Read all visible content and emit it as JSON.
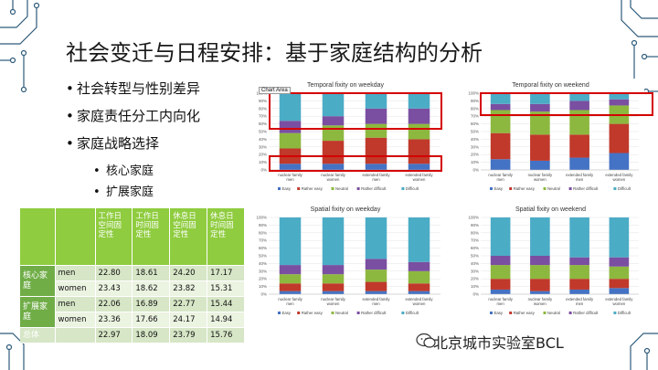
{
  "slide": {
    "title": "社会变迁与日程安排：基于家庭结构的分析",
    "bullets": [
      {
        "text": "社会转型与性别差异",
        "level": 1
      },
      {
        "text": "家庭责任分工内向化",
        "level": 1
      },
      {
        "text": "家庭战略选择",
        "level": 1
      },
      {
        "text": "核心家庭",
        "level": 2
      },
      {
        "text": "扩展家庭",
        "level": 2
      }
    ],
    "bullet_glyph": "•",
    "tooltip": "Chart Area",
    "watermark": "北京城市实验室BCL",
    "accent_color": "#2e5b7a",
    "highlight_color": "#d40000"
  },
  "table": {
    "headers": [
      "工作日空间固定性",
      "工作日时间固定性",
      "休息日空间固定性",
      "休息日时间固定性"
    ],
    "groups": [
      {
        "label": "核心家庭",
        "rows": [
          {
            "gender": "men",
            "values": [
              "22.80",
              "18.61",
              "24.20",
              "17.17"
            ]
          },
          {
            "gender": "women",
            "values": [
              "23.43",
              "18.62",
              "23.82",
              "15.31"
            ]
          }
        ]
      },
      {
        "label": "扩展家庭",
        "rows": [
          {
            "gender": "men",
            "values": [
              "22.06",
              "16.89",
              "22.77",
              "15.44"
            ]
          },
          {
            "gender": "women",
            "values": [
              "23.36",
              "17.66",
              "24.17",
              "14.94"
            ]
          }
        ]
      }
    ],
    "total": {
      "label": "总体",
      "values": [
        "22.97",
        "18.09",
        "23.79",
        "15.76"
      ]
    }
  },
  "chart_data": [
    {
      "type": "bar",
      "stacked": true,
      "title": "Temporal fixity on weekday",
      "categories": [
        "nuclear family men",
        "nuclear family women",
        "extended family men",
        "extended family women"
      ],
      "ylim": [
        0,
        100
      ],
      "yticks": [
        "0%",
        "10%",
        "20%",
        "30%",
        "40%",
        "50%",
        "60%",
        "70%",
        "80%",
        "90%",
        "100%"
      ],
      "legend": "bottom",
      "series": [
        {
          "name": "Easy",
          "color": "#4472c4",
          "values": [
            8,
            8,
            8,
            8
          ]
        },
        {
          "name": "Rather easy",
          "color": "#c0392b",
          "values": [
            20,
            30,
            34,
            32
          ]
        },
        {
          "name": "Neutral",
          "color": "#8db83f",
          "values": [
            20,
            20,
            18,
            20
          ]
        },
        {
          "name": "Rather difficult",
          "color": "#7a4fa1",
          "values": [
            16,
            12,
            20,
            20
          ]
        },
        {
          "name": "Difficult",
          "color": "#4bacc6",
          "values": [
            36,
            30,
            20,
            20
          ]
        }
      ]
    },
    {
      "type": "bar",
      "stacked": true,
      "title": "Temporal fixity on weekend",
      "categories": [
        "nuclear family men",
        "nuclear family women",
        "extended family men",
        "extended family women"
      ],
      "ylim": [
        0,
        100
      ],
      "yticks": [
        "0%",
        "10%",
        "20%",
        "30%",
        "40%",
        "50%",
        "60%",
        "70%",
        "80%",
        "90%",
        "100%"
      ],
      "legend": "bottom",
      "series": [
        {
          "name": "Easy",
          "color": "#4472c4",
          "values": [
            14,
            12,
            16,
            22
          ]
        },
        {
          "name": "Rather easy",
          "color": "#c0392b",
          "values": [
            34,
            34,
            30,
            38
          ]
        },
        {
          "name": "Neutral",
          "color": "#8db83f",
          "values": [
            30,
            30,
            32,
            24
          ]
        },
        {
          "name": "Rather difficult",
          "color": "#7a4fa1",
          "values": [
            8,
            10,
            12,
            8
          ]
        },
        {
          "name": "Difficult",
          "color": "#4bacc6",
          "values": [
            14,
            14,
            10,
            8
          ]
        }
      ]
    },
    {
      "type": "bar",
      "stacked": true,
      "title": "Spatial fixity on weekday",
      "categories": [
        "nuclear family men",
        "nuclear family women",
        "extended family men",
        "extended family women"
      ],
      "ylim": [
        0,
        100
      ],
      "yticks": [
        "0%",
        "10%",
        "20%",
        "30%",
        "40%",
        "50%",
        "60%",
        "70%",
        "80%",
        "90%",
        "100%"
      ],
      "legend": "bottom",
      "series": [
        {
          "name": "Easy",
          "color": "#4472c4",
          "values": [
            4,
            4,
            4,
            4
          ]
        },
        {
          "name": "Rather easy",
          "color": "#c0392b",
          "values": [
            10,
            10,
            12,
            10
          ]
        },
        {
          "name": "Neutral",
          "color": "#8db83f",
          "values": [
            12,
            12,
            16,
            16
          ]
        },
        {
          "name": "Rather difficult",
          "color": "#7a4fa1",
          "values": [
            12,
            12,
            14,
            12
          ]
        },
        {
          "name": "Difficult",
          "color": "#4bacc6",
          "values": [
            62,
            62,
            54,
            58
          ]
        }
      ]
    },
    {
      "type": "bar",
      "stacked": true,
      "title": "Spatial fixity on weekend",
      "categories": [
        "nuclear family men",
        "nuclear family women",
        "extended family men",
        "extended family women"
      ],
      "ylim": [
        0,
        100
      ],
      "yticks": [
        "0%",
        "10%",
        "20%",
        "30%",
        "40%",
        "50%",
        "60%",
        "70%",
        "80%",
        "90%",
        "100%"
      ],
      "legend": "bottom",
      "series": [
        {
          "name": "Easy",
          "color": "#4472c4",
          "values": [
            6,
            4,
            6,
            8
          ]
        },
        {
          "name": "Rather easy",
          "color": "#c0392b",
          "values": [
            14,
            16,
            14,
            12
          ]
        },
        {
          "name": "Neutral",
          "color": "#8db83f",
          "values": [
            18,
            18,
            18,
            16
          ]
        },
        {
          "name": "Rather difficult",
          "color": "#7a4fa1",
          "values": [
            12,
            12,
            10,
            12
          ]
        },
        {
          "name": "Difficult",
          "color": "#4bacc6",
          "values": [
            50,
            50,
            52,
            52
          ]
        }
      ]
    }
  ]
}
